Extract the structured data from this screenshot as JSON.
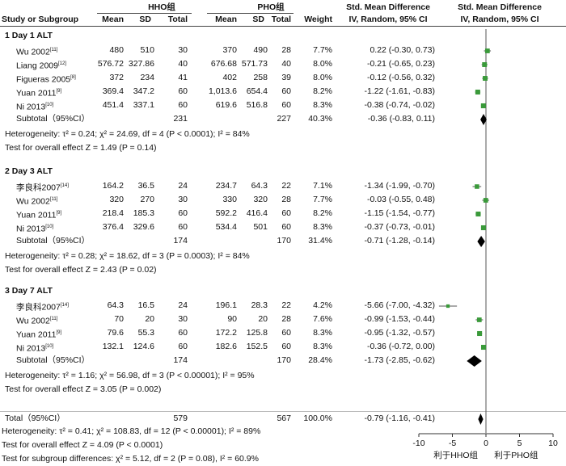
{
  "header": {
    "col_study": "Study or Subgroup",
    "hho_group": "HHO组",
    "pho_group": "PHO组",
    "col_mean": "Mean",
    "col_sd": "SD",
    "col_total": "Total",
    "col_weight": "Weight",
    "smd_title": "Std. Mean Difference",
    "smd_method": "IV, Random, 95% CI"
  },
  "groups": [
    {
      "title": "1 Day 1 ALT",
      "studies": [
        {
          "name": "Wu 2002",
          "ref": "[11]",
          "m1": "480",
          "s1": "510",
          "n1": "30",
          "m2": "370",
          "s2": "490",
          "n2": "28",
          "w": "7.7%",
          "ci": "0.22 (-0.30, 0.73)"
        },
        {
          "name": "Liang 2009",
          "ref": "[12]",
          "m1": "576.72",
          "s1": "327.86",
          "n1": "40",
          "m2": "676.68",
          "s2": "571.73",
          "n2": "40",
          "w": "8.0%",
          "ci": "-0.21 (-0.65, 0.23)"
        },
        {
          "name": "Figueras 2005",
          "ref": "[8]",
          "m1": "372",
          "s1": "234",
          "n1": "41",
          "m2": "402",
          "s2": "258",
          "n2": "39",
          "w": "8.0%",
          "ci": "-0.12 (-0.56, 0.32)"
        },
        {
          "name": "Yuan 2011",
          "ref": "[9]",
          "m1": "369.4",
          "s1": "347.2",
          "n1": "60",
          "m2": "1,013.6",
          "s2": "654.4",
          "n2": "60",
          "w": "8.2%",
          "ci": "-1.22 (-1.61, -0.83)"
        },
        {
          "name": "Ni 2013",
          "ref": "[10]",
          "m1": "451.4",
          "s1": "337.1",
          "n1": "60",
          "m2": "619.6",
          "s2": "516.8",
          "n2": "60",
          "w": "8.3%",
          "ci": "-0.38 (-0.74, -0.02)"
        }
      ],
      "subtotal": {
        "label": "Subtotal（95%CI）",
        "n1": "231",
        "n2": "227",
        "w": "40.3%",
        "ci": "-0.36 (-0.83, 0.11)"
      },
      "heterogeneity": "Heterogeneity: τ² = 0.24; χ² = 24.69, df = 4 (P < 0.0001); I² = 84%",
      "overall": "Test for overall effect Z = 1.49 (P = 0.14)"
    },
    {
      "title": "2 Day 3 ALT",
      "studies": [
        {
          "name": "李良科2007",
          "ref": "[14]",
          "m1": "164.2",
          "s1": "36.5",
          "n1": "24",
          "m2": "234.7",
          "s2": "64.3",
          "n2": "22",
          "w": "7.1%",
          "ci": "-1.34 (-1.99, -0.70)"
        },
        {
          "name": "Wu 2002",
          "ref": "[11]",
          "m1": "320",
          "s1": "270",
          "n1": "30",
          "m2": "330",
          "s2": "320",
          "n2": "28",
          "w": "7.7%",
          "ci": "-0.03 (-0.55, 0.48)"
        },
        {
          "name": "Yuan 2011",
          "ref": "[9]",
          "m1": "218.4",
          "s1": "185.3",
          "n1": "60",
          "m2": "592.2",
          "s2": "416.4",
          "n2": "60",
          "w": "8.2%",
          "ci": "-1.15 (-1.54, -0.77)"
        },
        {
          "name": "Ni 2013",
          "ref": "[10]",
          "m1": "376.4",
          "s1": "329.6",
          "n1": "60",
          "m2": "534.4",
          "s2": "501",
          "n2": "60",
          "w": "8.3%",
          "ci": "-0.37 (-0.73, -0.01)"
        }
      ],
      "subtotal": {
        "label": "Subtotal（95%CI）",
        "n1": "174",
        "n2": "170",
        "w": "31.4%",
        "ci": "-0.71 (-1.28, -0.14)"
      },
      "heterogeneity": "Heterogeneity: τ² = 0.28; χ² = 18.62, df = 3 (P = 0.0003); I² = 84%",
      "overall": "Test for overall effect Z = 2.43 (P = 0.02)"
    },
    {
      "title": "3 Day 7 ALT",
      "studies": [
        {
          "name": "李良科2007",
          "ref": "[14]",
          "m1": "64.3",
          "s1": "16.5",
          "n1": "24",
          "m2": "196.1",
          "s2": "28.3",
          "n2": "22",
          "w": "4.2%",
          "ci": "-5.66 (-7.00, -4.32)"
        },
        {
          "name": "Wu 2002",
          "ref": "[11]",
          "m1": "70",
          "s1": "20",
          "n1": "30",
          "m2": "90",
          "s2": "20",
          "n2": "28",
          "w": "7.6%",
          "ci": "-0.99 (-1.53, -0.44)"
        },
        {
          "name": "Yuan 2011",
          "ref": "[9]",
          "m1": "79.6",
          "s1": "55.3",
          "n1": "60",
          "m2": "172.2",
          "s2": "125.8",
          "n2": "60",
          "w": "8.3%",
          "ci": "-0.95 (-1.32, -0.57)"
        },
        {
          "name": "Ni 2013",
          "ref": "[10]",
          "m1": "132.1",
          "s1": "124.6",
          "n1": "60",
          "m2": "182.6",
          "s2": "152.5",
          "n2": "60",
          "w": "8.3%",
          "ci": "-0.36 (-0.72, 0.00)"
        }
      ],
      "subtotal": {
        "label": "Subtotal（95%CI）",
        "n1": "174",
        "n2": "170",
        "w": "28.4%",
        "ci": "-1.73 (-2.85, -0.62)"
      },
      "heterogeneity": "Heterogeneity: τ² = 1.16; χ² = 56.98, df = 3 (P < 0.00001); I² = 95%",
      "overall": "Test for overall effect Z = 3.05 (P = 0.002)"
    }
  ],
  "total": {
    "label": "Total（95%CI）",
    "n1": "579",
    "n2": "567",
    "w": "100.0%",
    "ci": "-0.79 (-1.16, -0.41)"
  },
  "footer": {
    "heterogeneity": "Heterogeneity: τ² = 0.41; χ² = 108.83, df = 12 (P < 0.00001); I² = 89%",
    "overall": "Test for overall effect Z = 4.09 (P < 0.0001)",
    "subgroup": "Test for subgroup differences: χ² = 5.12, df = 2 (P = 0.08), I² = 60.9%"
  },
  "axis": {
    "favours_left": "利于HHO组",
    "favours_right": "利于PHO组"
  },
  "colors": {
    "square": "#3a9a3a",
    "diamond": "#000000",
    "line": "#555555"
  },
  "chart_data": {
    "type": "forest",
    "xlim": [
      -10,
      10
    ],
    "xticks": [
      -10,
      -5,
      0,
      5,
      10
    ],
    "x_reference": 0,
    "studies": [
      {
        "group": "1 Day 1 ALT",
        "study": "Wu 2002",
        "smd": 0.22,
        "lo": -0.3,
        "hi": 0.73,
        "weight": 7.7
      },
      {
        "group": "1 Day 1 ALT",
        "study": "Liang 2009",
        "smd": -0.21,
        "lo": -0.65,
        "hi": 0.23,
        "weight": 8.0
      },
      {
        "group": "1 Day 1 ALT",
        "study": "Figueras 2005",
        "smd": -0.12,
        "lo": -0.56,
        "hi": 0.32,
        "weight": 8.0
      },
      {
        "group": "1 Day 1 ALT",
        "study": "Yuan 2011",
        "smd": -1.22,
        "lo": -1.61,
        "hi": -0.83,
        "weight": 8.2
      },
      {
        "group": "1 Day 1 ALT",
        "study": "Ni 2013",
        "smd": -0.38,
        "lo": -0.74,
        "hi": -0.02,
        "weight": 8.3
      },
      {
        "group": "2 Day 3 ALT",
        "study": "李良科2007",
        "smd": -1.34,
        "lo": -1.99,
        "hi": -0.7,
        "weight": 7.1
      },
      {
        "group": "2 Day 3 ALT",
        "study": "Wu 2002",
        "smd": -0.03,
        "lo": -0.55,
        "hi": 0.48,
        "weight": 7.7
      },
      {
        "group": "2 Day 3 ALT",
        "study": "Yuan 2011",
        "smd": -1.15,
        "lo": -1.54,
        "hi": -0.77,
        "weight": 8.2
      },
      {
        "group": "2 Day 3 ALT",
        "study": "Ni 2013",
        "smd": -0.37,
        "lo": -0.73,
        "hi": -0.01,
        "weight": 8.3
      },
      {
        "group": "3 Day 7 ALT",
        "study": "李良科2007",
        "smd": -5.66,
        "lo": -7.0,
        "hi": -4.32,
        "weight": 4.2
      },
      {
        "group": "3 Day 7 ALT",
        "study": "Wu 2002",
        "smd": -0.99,
        "lo": -1.53,
        "hi": -0.44,
        "weight": 7.6
      },
      {
        "group": "3 Day 7 ALT",
        "study": "Yuan 2011",
        "smd": -0.95,
        "lo": -1.32,
        "hi": -0.57,
        "weight": 8.3
      },
      {
        "group": "3 Day 7 ALT",
        "study": "Ni 2013",
        "smd": -0.36,
        "lo": -0.72,
        "hi": 0.0,
        "weight": 8.3
      }
    ],
    "summaries": [
      {
        "label": "Subtotal 1 Day 1 ALT",
        "smd": -0.36,
        "lo": -0.83,
        "hi": 0.11
      },
      {
        "label": "Subtotal 2 Day 3 ALT",
        "smd": -0.71,
        "lo": -1.28,
        "hi": -0.14
      },
      {
        "label": "Subtotal 3 Day 7 ALT",
        "smd": -1.73,
        "lo": -2.85,
        "hi": -0.62
      },
      {
        "label": "Total",
        "smd": -0.79,
        "lo": -1.16,
        "hi": -0.41
      }
    ]
  }
}
